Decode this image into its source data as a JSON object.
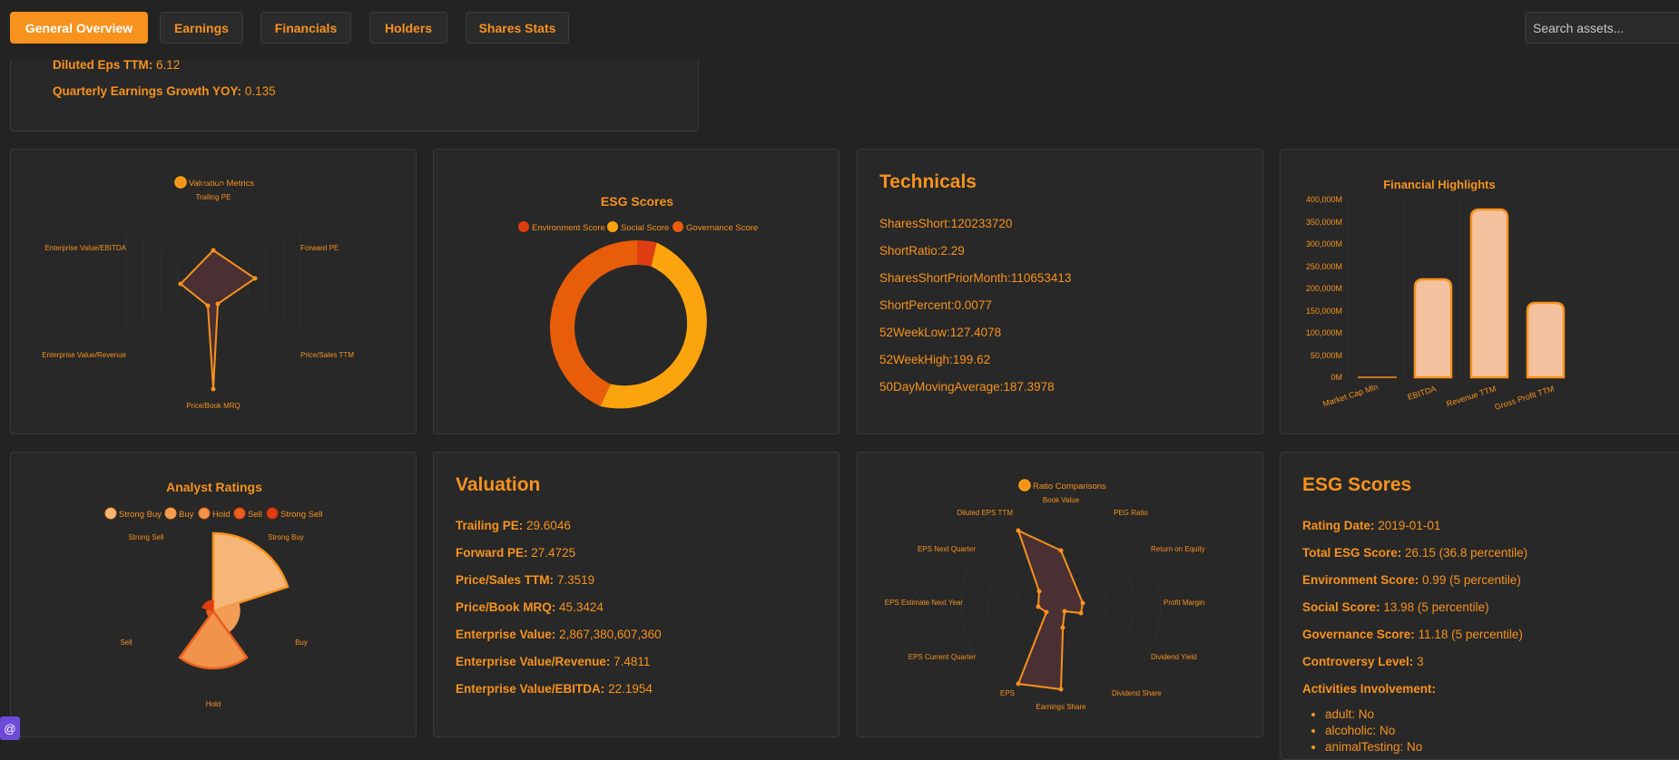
{
  "nav": {
    "tabs": [
      "General Overview",
      "Earnings",
      "Financials",
      "Holders",
      "Shares Stats"
    ],
    "search_placeholder": "Search assets..."
  },
  "overview_card": {
    "diluted_eps_label": "Diluted Eps TTM:",
    "diluted_eps_value": "6.12",
    "qeg_label": "Quarterly Earnings Growth YOY:",
    "qeg_value": "0.135"
  },
  "valuation_radar": {
    "legend": "Valuation Metrics",
    "axes": [
      "Trailing PE",
      "Forward PE",
      "Price/Sales TTM",
      "Price/Book MRQ",
      "Enterprise Value/Revenue",
      "Enterprise Value/EBITDA"
    ],
    "colors": {
      "fill": "#4a2f33",
      "stroke": "#f7921e"
    }
  },
  "esg_donut": {
    "title": "ESG Scores",
    "legend": [
      "Environment Score",
      "Social Score",
      "Governance Score"
    ],
    "colors": [
      "#dd3d10",
      "#fba40d",
      "#e85d0a"
    ]
  },
  "technicals": {
    "title": "Technicals",
    "lines": [
      "SharesShort:120233720",
      "ShortRatio:2.29",
      "SharesShortPriorMonth:110653413",
      "ShortPercent:0.0077",
      "52WeekLow:127.4078",
      "52WeekHigh:199.62",
      "50DayMovingAverage:187.3978"
    ]
  },
  "financial_highlights": {
    "title": "Financial Highlights",
    "y_ticks": [
      "400,000M",
      "350,000M",
      "300,000M",
      "250,000M",
      "200,000M",
      "150,000M",
      "100,000M",
      "50,000M",
      "0M"
    ],
    "categories": [
      "Market Cap Mln",
      "EBITDA",
      "Revenue TTM",
      "Gross Profit TTM"
    ]
  },
  "analyst_ratings": {
    "title": "Analyst Ratings",
    "legend": [
      "Strong Buy",
      "Buy",
      "Hold",
      "Sell",
      "Strong Sell"
    ],
    "axis_labels": [
      "Strong Buy",
      "Buy",
      "Hold",
      "Sell",
      "Strong Sell"
    ],
    "colors": [
      "#f5b678",
      "#f39c55",
      "#f1934a",
      "#e8601e",
      "#dd3d10"
    ]
  },
  "valuation": {
    "title": "Valuation",
    "rows": [
      {
        "label": "Trailing PE:",
        "value": "29.6046"
      },
      {
        "label": "Forward PE:",
        "value": "27.4725"
      },
      {
        "label": "Price/Sales TTM:",
        "value": "7.3519"
      },
      {
        "label": "Price/Book MRQ:",
        "value": "45.3424"
      },
      {
        "label": "Enterprise Value:",
        "value": "2,867,380,607,360"
      },
      {
        "label": "Enterprise Value/Revenue:",
        "value": "7.4811"
      },
      {
        "label": "Enterprise Value/EBITDA:",
        "value": "22.1954"
      }
    ]
  },
  "ratio_radar": {
    "legend": "Ratio Comparisons",
    "axes": [
      "Book Value",
      "PEG Ratio",
      "Return on Equity",
      "Profit Margin",
      "Dividend Yield",
      "Dividend Share",
      "Earnings Share",
      "EPS",
      "EPS Current Quarter",
      "EPS Estimate Next Year",
      "EPS Next Quarter",
      "Diluted EPS TTM"
    ]
  },
  "esg_scores": {
    "title": "ESG Scores",
    "rows": [
      {
        "label": "Rating Date:",
        "value": "2019-01-01"
      },
      {
        "label": "Total ESG Score:",
        "value": "26.15 (36.8 percentile)"
      },
      {
        "label": "Environment Score:",
        "value": "0.99 (5 percentile)"
      },
      {
        "label": "Social Score:",
        "value": "13.98 (5 percentile)"
      },
      {
        "label": "Governance Score:",
        "value": "11.18 (5 percentile)"
      },
      {
        "label": "Controversy Level:",
        "value": "3"
      },
      {
        "label": "Activities Involvement:",
        "value": ""
      }
    ],
    "activities": [
      "adult: No",
      "alcoholic: No",
      "animalTesting: No"
    ]
  },
  "badge": "@"
}
